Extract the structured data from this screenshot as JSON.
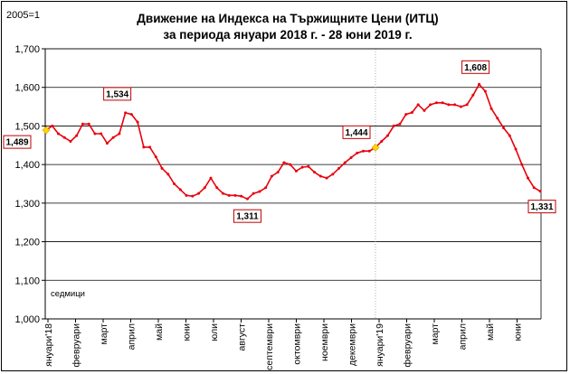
{
  "chart_data": {
    "type": "line",
    "title_line1": "Движение на Индекса на Тържищните Цени (ИТЦ)",
    "title_line2": "за периода януари 2018 г. - 28 юни 2019 г.",
    "base_label": "2005=1",
    "unit_label": "седмици",
    "ylim": [
      1.0,
      1.7
    ],
    "yticks": [
      "1,000",
      "1,100",
      "1,200",
      "1,300",
      "1,400",
      "1,500",
      "1,600",
      "1,700"
    ],
    "ytick_values": [
      1.0,
      1.1,
      1.2,
      1.3,
      1.4,
      1.5,
      1.6,
      1.7
    ],
    "months": [
      "януари'18",
      "февруари",
      "март",
      "април",
      "май",
      "юни",
      "юли",
      "август",
      "септември",
      "октомври",
      "ноември",
      "декември",
      "януари'19",
      "февруари",
      "март",
      "април",
      "май",
      "юни"
    ],
    "grid": true,
    "line_color": "#e8000b",
    "marker_color": "#e8000b",
    "highlight_color": "#ffd700",
    "values": [
      1.489,
      1.5,
      1.48,
      1.47,
      1.46,
      1.475,
      1.505,
      1.505,
      1.48,
      1.48,
      1.455,
      1.47,
      1.48,
      1.534,
      1.53,
      1.51,
      1.445,
      1.445,
      1.42,
      1.39,
      1.375,
      1.35,
      1.335,
      1.32,
      1.318,
      1.325,
      1.34,
      1.365,
      1.34,
      1.325,
      1.32,
      1.32,
      1.318,
      1.311,
      1.325,
      1.33,
      1.34,
      1.37,
      1.38,
      1.405,
      1.4,
      1.383,
      1.393,
      1.395,
      1.38,
      1.37,
      1.365,
      1.375,
      1.39,
      1.405,
      1.418,
      1.43,
      1.435,
      1.435,
      1.444,
      1.46,
      1.475,
      1.5,
      1.505,
      1.53,
      1.535,
      1.555,
      1.54,
      1.555,
      1.56,
      1.56,
      1.555,
      1.555,
      1.55,
      1.555,
      1.58,
      1.608,
      1.59,
      1.545,
      1.52,
      1.495,
      1.475,
      1.44,
      1.4,
      1.365,
      1.34,
      1.331
    ],
    "highlights": [
      0,
      54
    ],
    "annotations": [
      {
        "index": 0,
        "text": "1,489",
        "position": "below"
      },
      {
        "index": 13,
        "text": "1,534",
        "position": "above"
      },
      {
        "index": 33,
        "text": "1,311",
        "position": "below"
      },
      {
        "index": 54,
        "text": "1,444",
        "position": "above"
      },
      {
        "index": 71,
        "text": "1,608",
        "position": "above"
      },
      {
        "index": 81,
        "text": "1,331",
        "position": "below"
      }
    ]
  }
}
